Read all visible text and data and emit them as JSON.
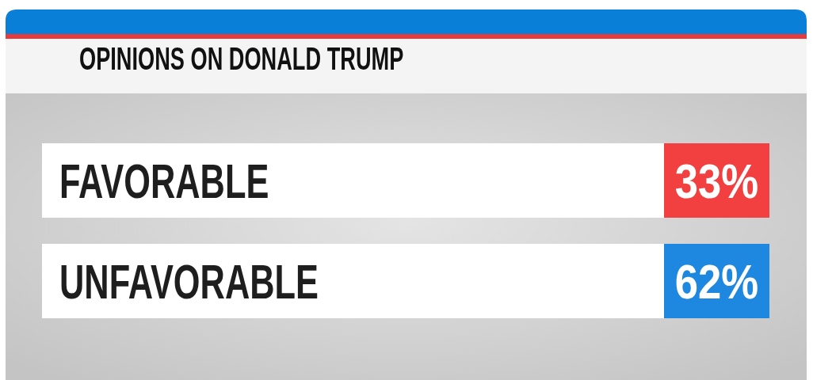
{
  "chart_data": {
    "type": "other",
    "title": "OPINIONS ON DONALD TRUMP",
    "categories": [
      "FAVORABLE",
      "UNFAVORABLE"
    ],
    "values": [
      33,
      62
    ],
    "value_labels": [
      "33%",
      "62%"
    ],
    "colors": [
      "#f23f3f",
      "#1e88e0"
    ]
  }
}
